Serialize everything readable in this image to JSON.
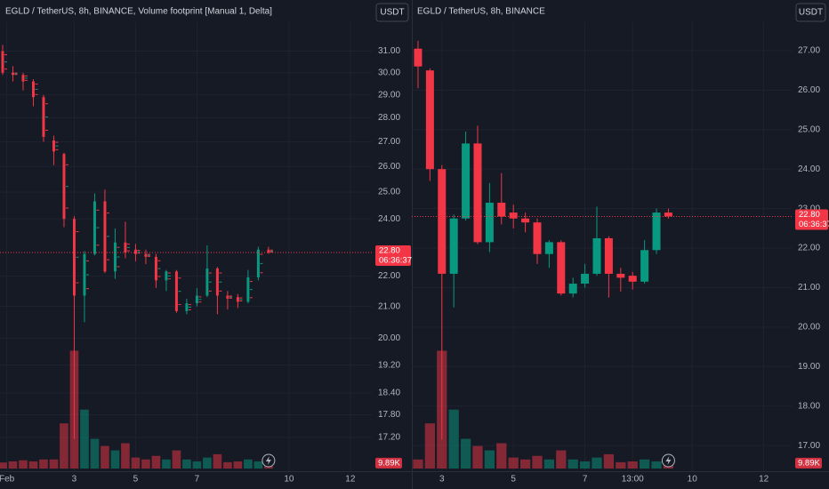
{
  "chart_data": [
    {
      "type": "candlestick",
      "title": "EGLD / TetherUS, 8h, BINANCE, Volume footprint [Manual 1, Delta]",
      "currency": "USDT",
      "log": true,
      "grid": true,
      "colors": {
        "up": "#089981",
        "down": "#f23645"
      },
      "ylim": [
        16.33,
        32.4
      ],
      "yticks": [
        {
          "value": 31,
          "label": "31.00"
        },
        {
          "value": 30,
          "label": "30.00"
        },
        {
          "value": 29,
          "label": "29.00"
        },
        {
          "value": 28,
          "label": "28.00"
        },
        {
          "value": 27,
          "label": "27.00"
        },
        {
          "value": 26,
          "label": "26.00"
        },
        {
          "value": 25,
          "label": "25.00"
        },
        {
          "value": 24,
          "label": "24.00"
        },
        {
          "value": 22,
          "label": "22.00"
        },
        {
          "value": 21,
          "label": "21.00"
        },
        {
          "value": 20,
          "label": "20.00"
        },
        {
          "value": 19.2,
          "label": "19.20"
        },
        {
          "value": 18.4,
          "label": "18.40"
        },
        {
          "value": 17.8,
          "label": "17.80"
        },
        {
          "value": 17.2,
          "label": "17.20"
        }
      ],
      "xlim": [
        -0.26,
        36.1
      ],
      "xticks": [
        {
          "value": 0.4,
          "label": "Feb"
        },
        {
          "value": 7,
          "label": "3"
        },
        {
          "value": 13,
          "label": "5"
        },
        {
          "value": 19,
          "label": "7"
        },
        {
          "value": 28,
          "label": "10"
        },
        {
          "value": 34,
          "label": "12"
        }
      ],
      "candles": {
        "open": [
          31.0,
          30.0,
          29.9,
          29.6,
          28.9,
          27.05,
          26.5,
          24.0,
          21.35,
          22.75,
          24.65,
          22.15,
          23.15,
          22.9,
          22.75,
          22.65,
          21.85,
          22.15,
          20.85,
          21.1,
          21.35,
          22.25,
          21.35,
          21.3,
          21.15,
          21.95,
          22.9
        ],
        "high": [
          31.3,
          30.3,
          30.0,
          29.7,
          29.0,
          27.25,
          26.55,
          24.1,
          22.85,
          24.95,
          25.1,
          23.65,
          23.9,
          23.1,
          22.9,
          22.75,
          22.2,
          22.2,
          21.25,
          21.6,
          23.05,
          22.3,
          21.5,
          21.4,
          22.2,
          23.0,
          23.0
        ],
        "low": [
          29.9,
          29.6,
          29.2,
          28.5,
          27.0,
          26.05,
          23.7,
          17.15,
          20.5,
          22.7,
          22.1,
          21.9,
          22.6,
          22.5,
          22.4,
          21.6,
          21.5,
          20.8,
          20.75,
          21.0,
          21.3,
          20.75,
          20.9,
          20.95,
          21.1,
          21.85,
          22.75
        ],
        "close": [
          30.0,
          29.9,
          29.6,
          28.9,
          27.2,
          26.6,
          24.0,
          21.35,
          22.75,
          24.65,
          22.15,
          23.15,
          22.8,
          22.75,
          22.65,
          21.85,
          22.15,
          20.85,
          21.1,
          21.35,
          22.25,
          21.35,
          21.25,
          21.15,
          21.95,
          22.9,
          22.8
        ]
      },
      "volume": [
        11000,
        13000,
        15000,
        13000,
        16500,
        16500,
        82000,
        214000,
        107000,
        54000,
        41000,
        33000,
        46000,
        20000,
        16500,
        23000,
        16500,
        33000,
        16500,
        13000,
        20000,
        26000,
        11500,
        13000,
        16500,
        13000,
        9890
      ],
      "volume_lim": [
        0,
        226000
      ],
      "last_price": {
        "value": 22.8,
        "label": "22.80"
      },
      "countdown": "06:36:37",
      "last_volume": {
        "value": 9890,
        "label": "9.89K"
      }
    },
    {
      "type": "candlestick",
      "title": "EGLD / TetherUS, 8h, BINANCE",
      "currency": "USDT",
      "log": false,
      "grid": true,
      "colors": {
        "up": "#089981",
        "down": "#f23645"
      },
      "ylim": [
        16.35,
        27.72
      ],
      "yticks": [
        {
          "value": 27,
          "label": "27.00"
        },
        {
          "value": 26,
          "label": "26.00"
        },
        {
          "value": 25,
          "label": "25.00"
        },
        {
          "value": 24,
          "label": "24.00"
        },
        {
          "value": 23,
          "label": "23.00"
        },
        {
          "value": 22,
          "label": "22.00"
        },
        {
          "value": 21,
          "label": "21.00"
        },
        {
          "value": 20,
          "label": "20.00"
        },
        {
          "value": 19,
          "label": "19.00"
        },
        {
          "value": 18,
          "label": "18.00"
        },
        {
          "value": 17,
          "label": "17.00"
        }
      ],
      "xlim": [
        -0.52,
        31.34
      ],
      "xticks": [
        {
          "value": 2,
          "label": "3"
        },
        {
          "value": 8,
          "label": "5"
        },
        {
          "value": 14,
          "label": "7"
        },
        {
          "value": 18,
          "label": "13:00"
        },
        {
          "value": 23,
          "label": "10"
        },
        {
          "value": 29,
          "label": "12"
        }
      ],
      "candles": {
        "open": [
          27.05,
          26.5,
          24.0,
          21.35,
          22.75,
          24.65,
          22.15,
          23.15,
          22.9,
          22.75,
          22.65,
          21.85,
          22.15,
          20.85,
          21.1,
          21.35,
          22.25,
          21.35,
          21.3,
          21.15,
          21.95,
          22.9
        ],
        "high": [
          27.25,
          26.55,
          24.1,
          22.85,
          24.95,
          25.1,
          23.65,
          23.9,
          23.1,
          22.9,
          22.75,
          22.2,
          22.2,
          21.25,
          21.6,
          23.05,
          22.3,
          21.5,
          21.4,
          22.2,
          23.0,
          23.0
        ],
        "low": [
          26.05,
          23.7,
          17.15,
          20.5,
          22.7,
          22.1,
          21.9,
          22.6,
          22.5,
          22.4,
          21.6,
          21.5,
          20.8,
          20.75,
          21.0,
          21.3,
          20.75,
          20.9,
          20.95,
          21.1,
          21.85,
          22.75
        ],
        "close": [
          26.6,
          24.0,
          21.35,
          22.75,
          24.65,
          22.15,
          23.15,
          22.8,
          22.75,
          22.65,
          21.85,
          22.15,
          20.85,
          21.1,
          21.35,
          22.25,
          21.35,
          21.25,
          21.15,
          21.95,
          22.9,
          22.8
        ]
      },
      "volume": [
        16500,
        82000,
        214000,
        107000,
        54000,
        41000,
        33000,
        46000,
        20000,
        16500,
        23000,
        16500,
        33000,
        16500,
        13000,
        20000,
        26000,
        11500,
        13000,
        16500,
        13000,
        9890
      ],
      "volume_lim": [
        0,
        226000
      ],
      "last_price": {
        "value": 22.8,
        "label": "22.80"
      },
      "countdown": "06:36:37",
      "last_volume": {
        "value": 9890,
        "label": "9.89K"
      }
    }
  ]
}
